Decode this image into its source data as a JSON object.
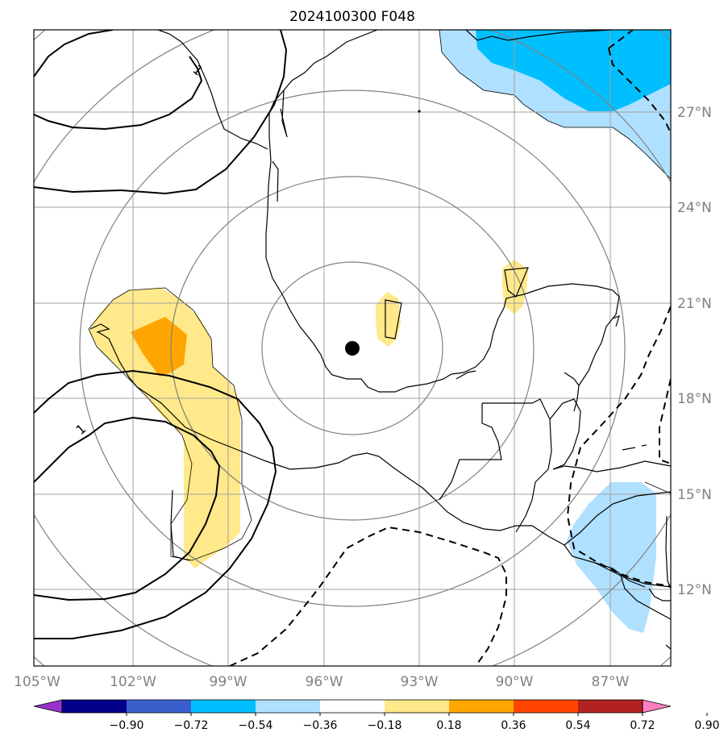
{
  "title": "2024100300 F048",
  "lon_ticks": [
    "105°W",
    "102°W",
    "99°W",
    "96°W",
    "93°W",
    "90°W",
    "87°W"
  ],
  "lat_ticks": [
    "27°N",
    "24°N",
    "21°N",
    "18°N",
    "15°N",
    "12°N"
  ],
  "contour_labels": [
    "1",
    "1"
  ],
  "colorbar": {
    "tick_labels": [
      "−0.90",
      "−0.72",
      "−0.54",
      "−0.36",
      "−0.18",
      "0.18",
      "0.36",
      "0.54",
      "0.72",
      "0.90"
    ],
    "colors": [
      "#9932cc",
      "#00008b",
      "#3a5fcd",
      "#00bfff",
      "#b0e0ff",
      "#ffffff",
      "#ffe98a",
      "#ffa500",
      "#ff4500",
      "#b22222",
      "#ff7fbf"
    ]
  },
  "colors": {
    "light_blue": "#b0e0ff",
    "deep_sky_blue": "#00bfff",
    "light_yellow": "#ffe98a",
    "orange": "#ffa500",
    "grid": "#a0a0a0",
    "range_rings": "#808080"
  },
  "center_marker": "filled-circle"
}
